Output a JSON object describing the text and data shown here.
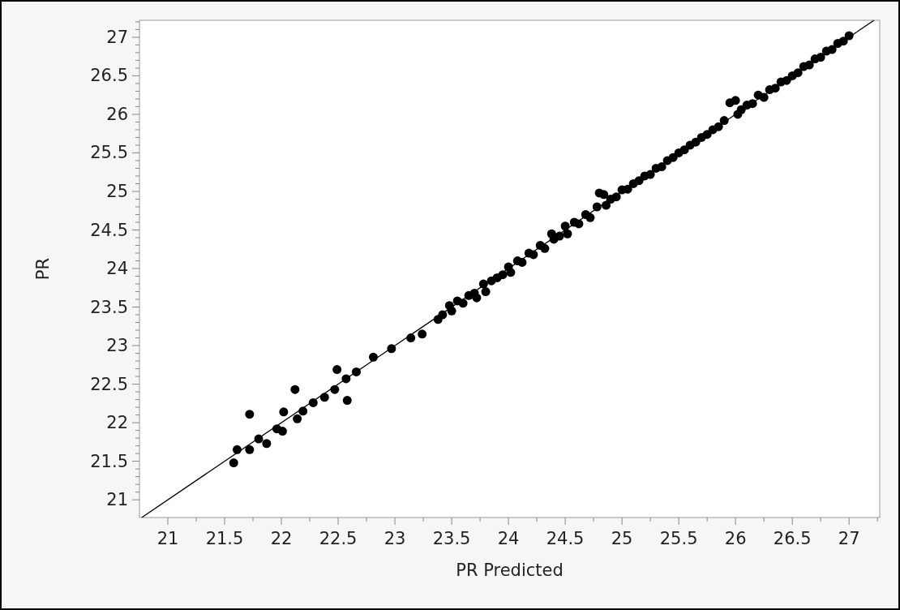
{
  "chart_data": {
    "type": "scatter",
    "xlabel": "PR Predicted",
    "ylabel": "PR",
    "xlim": [
      20.75,
      27.27
    ],
    "ylim": [
      20.77,
      27.22
    ],
    "xticks": [
      21,
      {
        "value": 21.25,
        "label": null
      },
      21.5,
      {
        "value": 21.75,
        "label": null
      },
      22,
      {
        "value": 22.25,
        "label": null
      },
      22.5,
      {
        "value": 22.75,
        "label": null
      },
      23,
      {
        "value": 23.25,
        "label": null
      },
      23.5,
      {
        "value": 23.75,
        "label": null
      },
      24,
      {
        "value": 24.25,
        "label": null
      },
      24.5,
      {
        "value": 24.75,
        "label": null
      },
      25,
      {
        "value": 25.25,
        "label": null
      },
      25.5,
      {
        "value": 25.75,
        "label": null
      },
      26,
      {
        "value": 26.25,
        "label": null
      },
      26.5,
      {
        "value": 26.75,
        "label": null
      },
      27,
      {
        "value": 27.25,
        "label": null
      }
    ],
    "yticks": [
      21,
      {
        "value": 21.1,
        "label": null
      },
      {
        "value": 21.2,
        "label": null
      },
      {
        "value": 21.3,
        "label": null
      },
      {
        "value": 21.4,
        "label": null
      },
      21.5,
      {
        "value": 21.6,
        "label": null
      },
      {
        "value": 21.7,
        "label": null
      },
      {
        "value": 21.8,
        "label": null
      },
      {
        "value": 21.9,
        "label": null
      },
      22,
      {
        "value": 22.1,
        "label": null
      },
      {
        "value": 22.2,
        "label": null
      },
      {
        "value": 22.3,
        "label": null
      },
      {
        "value": 22.4,
        "label": null
      },
      22.5,
      {
        "value": 22.6,
        "label": null
      },
      {
        "value": 22.7,
        "label": null
      },
      {
        "value": 22.8,
        "label": null
      },
      {
        "value": 22.9,
        "label": null
      },
      23,
      {
        "value": 23.1,
        "label": null
      },
      {
        "value": 23.2,
        "label": null
      },
      {
        "value": 23.3,
        "label": null
      },
      {
        "value": 23.4,
        "label": null
      },
      23.5,
      {
        "value": 23.6,
        "label": null
      },
      {
        "value": 23.7,
        "label": null
      },
      {
        "value": 23.8,
        "label": null
      },
      {
        "value": 23.9,
        "label": null
      },
      24,
      {
        "value": 24.1,
        "label": null
      },
      {
        "value": 24.2,
        "label": null
      },
      {
        "value": 24.3,
        "label": null
      },
      {
        "value": 24.4,
        "label": null
      },
      24.5,
      {
        "value": 24.6,
        "label": null
      },
      {
        "value": 24.7,
        "label": null
      },
      {
        "value": 24.8,
        "label": null
      },
      {
        "value": 24.9,
        "label": null
      },
      25,
      {
        "value": 25.1,
        "label": null
      },
      {
        "value": 25.2,
        "label": null
      },
      {
        "value": 25.3,
        "label": null
      },
      {
        "value": 25.4,
        "label": null
      },
      25.5,
      {
        "value": 25.6,
        "label": null
      },
      {
        "value": 25.7,
        "label": null
      },
      {
        "value": 25.8,
        "label": null
      },
      {
        "value": 25.9,
        "label": null
      },
      26,
      {
        "value": 26.1,
        "label": null
      },
      {
        "value": 26.2,
        "label": null
      },
      {
        "value": 26.3,
        "label": null
      },
      {
        "value": 26.4,
        "label": null
      },
      26.5,
      {
        "value": 26.6,
        "label": null
      },
      {
        "value": 26.7,
        "label": null
      },
      {
        "value": 26.8,
        "label": null
      },
      {
        "value": 26.9,
        "label": null
      },
      27,
      {
        "value": 27.1,
        "label": null
      },
      {
        "value": 27.2,
        "label": null
      }
    ],
    "grid": false,
    "marker": "circle",
    "series": [
      {
        "color": "#000000",
        "x": [
          21.58,
          21.61,
          21.72,
          21.72,
          21.8,
          21.87,
          21.96,
          22.01,
          22.02,
          22.12,
          22.14,
          22.19,
          22.28,
          22.38,
          22.49,
          22.47,
          22.58,
          22.57,
          22.66,
          22.81,
          22.97,
          23.14,
          23.24,
          23.38,
          23.42,
          23.48,
          23.5,
          23.55,
          23.6,
          23.65,
          23.7,
          23.72,
          23.78,
          23.8,
          23.85,
          23.9,
          23.95,
          24.0,
          24.02,
          24.08,
          24.12,
          24.18,
          24.22,
          24.28,
          24.32,
          24.38,
          24.4,
          24.45,
          24.5,
          24.52,
          24.58,
          24.62,
          24.68,
          24.72,
          24.78,
          24.8,
          24.84,
          24.86,
          24.9,
          24.95,
          25.0,
          25.05,
          25.1,
          25.15,
          25.2,
          25.25,
          25.3,
          25.35,
          25.4,
          25.45,
          25.5,
          25.55,
          25.6,
          25.65,
          25.7,
          25.75,
          25.8,
          25.85,
          25.9,
          25.95,
          26.0,
          26.02,
          26.05,
          26.1,
          26.15,
          26.2,
          26.25,
          26.3,
          26.35,
          26.4,
          26.45,
          26.5,
          26.55,
          26.6,
          26.65,
          26.7,
          26.75,
          26.8,
          26.85,
          26.9,
          26.95,
          27.0
        ],
        "values": [
          21.48,
          21.65,
          21.65,
          22.11,
          21.79,
          21.73,
          21.92,
          21.89,
          22.14,
          22.43,
          22.05,
          22.15,
          22.26,
          22.33,
          22.69,
          22.43,
          22.29,
          22.57,
          22.66,
          22.85,
          22.96,
          23.1,
          23.15,
          23.34,
          23.4,
          23.52,
          23.45,
          23.58,
          23.55,
          23.65,
          23.68,
          23.62,
          23.8,
          23.7,
          23.84,
          23.88,
          23.92,
          24.02,
          23.95,
          24.1,
          24.08,
          24.2,
          24.18,
          24.3,
          24.26,
          24.45,
          24.38,
          24.42,
          24.55,
          24.45,
          24.6,
          24.58,
          24.7,
          24.66,
          24.8,
          24.98,
          24.96,
          24.82,
          24.9,
          24.93,
          25.02,
          25.03,
          25.1,
          25.14,
          25.2,
          25.22,
          25.3,
          25.32,
          25.4,
          25.44,
          25.5,
          25.54,
          25.6,
          25.64,
          25.7,
          25.74,
          25.8,
          25.84,
          25.92,
          26.15,
          26.18,
          26.0,
          26.06,
          26.12,
          26.14,
          26.25,
          26.22,
          26.32,
          26.34,
          26.42,
          26.44,
          26.5,
          26.54,
          26.62,
          26.64,
          26.72,
          26.74,
          26.82,
          26.84,
          26.92,
          26.95,
          27.02
        ]
      },
      {
        "type": "line",
        "color": "#000000",
        "marker": "none",
        "x": [
          20.77,
          27.22
        ],
        "values": [
          20.77,
          27.22
        ]
      }
    ]
  }
}
